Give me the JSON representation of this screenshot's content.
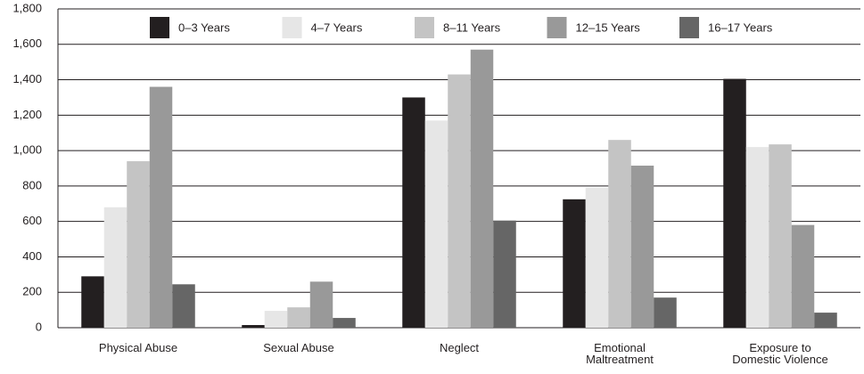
{
  "chart_data": {
    "type": "bar",
    "categories": [
      "Physical Abuse",
      "Sexual Abuse",
      "Neglect",
      "Emotional Maltreatment",
      "Exposure to Domestic Violence"
    ],
    "series": [
      {
        "name": "0–3 Years",
        "color": "#231f20",
        "values": [
          290,
          15,
          1300,
          725,
          1405
        ]
      },
      {
        "name": "4–7 Years",
        "color": "#e6e6e6",
        "values": [
          680,
          95,
          1170,
          790,
          1020
        ]
      },
      {
        "name": "8–11 Years",
        "color": "#c4c4c4",
        "values": [
          940,
          115,
          1430,
          1060,
          1035
        ]
      },
      {
        "name": "12–15 Years",
        "color": "#999999",
        "values": [
          1360,
          260,
          1570,
          915,
          580
        ]
      },
      {
        "name": "16–17 Years",
        "color": "#666666",
        "values": [
          245,
          55,
          605,
          170,
          85
        ]
      }
    ],
    "ylim": [
      0,
      1800
    ],
    "yticks": [
      0,
      200,
      400,
      600,
      800,
      {
        "value": 1000,
        "label": "1,000"
      },
      {
        "value": 1200,
        "label": "1,200"
      },
      {
        "value": 1400,
        "label": "1,400"
      },
      {
        "value": 1600,
        "label": "1,600"
      },
      {
        "value": 1800,
        "label": "1,800"
      }
    ],
    "grid": true,
    "legend": "top"
  }
}
